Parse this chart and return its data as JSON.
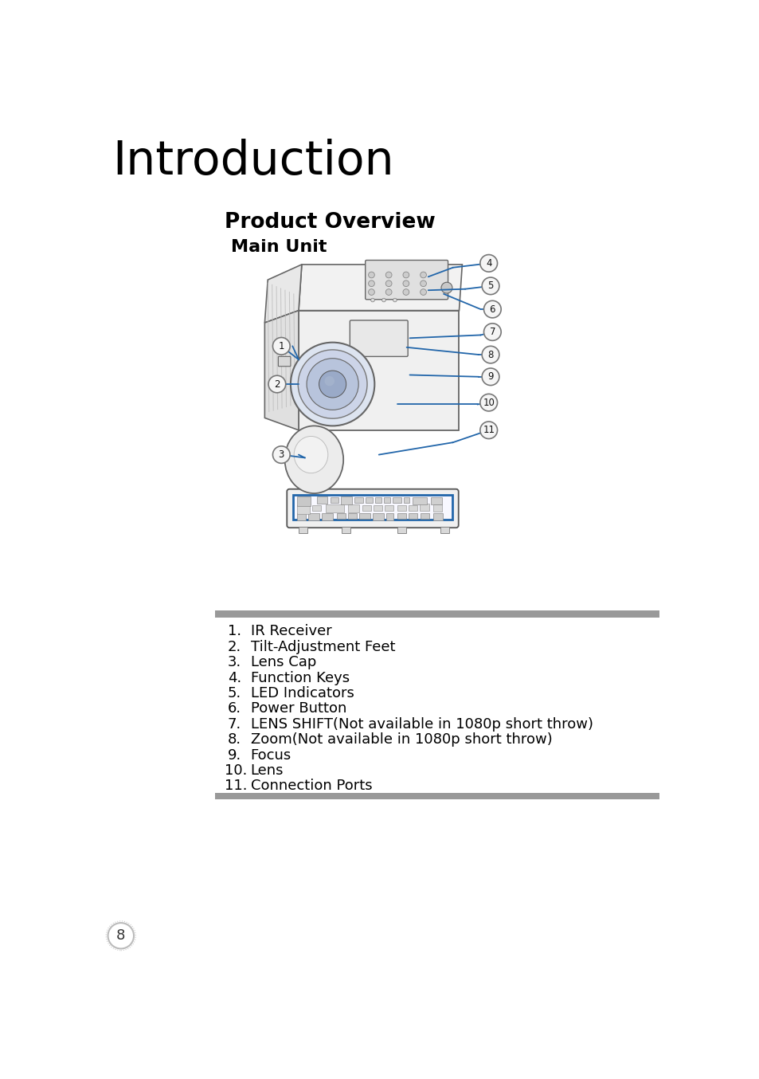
{
  "title": "Introduction",
  "subtitle": "Product Overview",
  "sub_subtitle": "Main Unit",
  "bg_color": "#ffffff",
  "title_color": "#000000",
  "title_fontsize": 42,
  "subtitle_fontsize": 19,
  "sub_subtitle_fontsize": 16,
  "list_items": [
    "IR Receiver",
    "Tilt-Adjustment Feet",
    "Lens Cap",
    "Function Keys",
    "LED Indicators",
    "Power Button",
    "LENS SHIFT(Not available in 1080p short throw)",
    "Zoom(Not available in 1080p short throw)",
    "Focus",
    "Lens",
    "Connection Ports"
  ],
  "list_fontsize": 13,
  "list_number_color": "#000000",
  "list_text_color": "#000000",
  "bar_color": "#999999",
  "line_color": "#2266aa",
  "circle_edge_color": "#777777",
  "circle_fill_color": "#f5f5f5",
  "page_number": "8",
  "page_circle_color": "#ffffff",
  "page_circle_edge": "#bbbbbb",
  "body_fill": "#f8f8f8",
  "body_edge": "#666666",
  "lens_fill": "#dde4ee",
  "lens_edge": "#555555"
}
